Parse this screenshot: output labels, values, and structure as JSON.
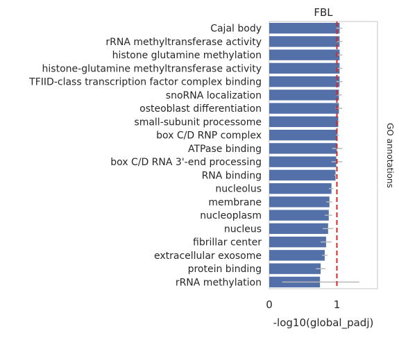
{
  "chart_data": {
    "type": "bar",
    "orientation": "horizontal",
    "title": "FBL",
    "xlabel": "-log10(global_padj)",
    "right_label": "GO annotations",
    "xlim": [
      0,
      1.6
    ],
    "xticks": [
      {
        "value": 0,
        "label": "0"
      },
      {
        "value": 1,
        "label": "1"
      }
    ],
    "threshold": 1.0,
    "bar_color": "#5470a8",
    "errorbar_color": "#b8b8b8",
    "threshold_color": "#d62728",
    "categories": [
      "Cajal body",
      "rRNA methyltransferase activity",
      "histone glutamine methylation",
      "histone-glutamine methyltransferase activity",
      "TFIID-class transcription factor complex binding",
      "snoRNA localization",
      "osteoblast differentiation",
      "small-subunit processome",
      "box C/D RNP complex",
      "ATPase binding",
      "box C/D RNA 3'-end processing",
      "RNA binding",
      "nucleolus",
      "membrane",
      "nucleoplasm",
      "nucleus",
      "fibrillar center",
      "extracellular exosome",
      "protein binding",
      "rRNA methylation"
    ],
    "values": [
      1.04,
      1.04,
      1.04,
      1.04,
      1.04,
      1.03,
      1.03,
      1.02,
      1.01,
      1.0,
      0.99,
      0.98,
      0.92,
      0.89,
      0.88,
      0.87,
      0.84,
      0.82,
      0.76,
      0.75
    ],
    "errors": [
      [
        0.99,
        1.08
      ],
      [
        0.99,
        1.08
      ],
      [
        0.99,
        1.08
      ],
      [
        0.99,
        1.08
      ],
      [
        0.99,
        1.08
      ],
      [
        0.99,
        1.07
      ],
      [
        0.98,
        1.08
      ],
      [
        1.0,
        1.04
      ],
      [
        0.99,
        1.03
      ],
      [
        0.93,
        1.08
      ],
      [
        0.92,
        1.08
      ],
      [
        0.96,
        1.0
      ],
      [
        0.88,
        0.95
      ],
      [
        0.84,
        0.93
      ],
      [
        0.82,
        0.93
      ],
      [
        0.79,
        0.95
      ],
      [
        0.76,
        0.92
      ],
      [
        0.78,
        0.86
      ],
      [
        0.69,
        0.83
      ],
      [
        0.19,
        1.33
      ]
    ],
    "grid": false
  }
}
